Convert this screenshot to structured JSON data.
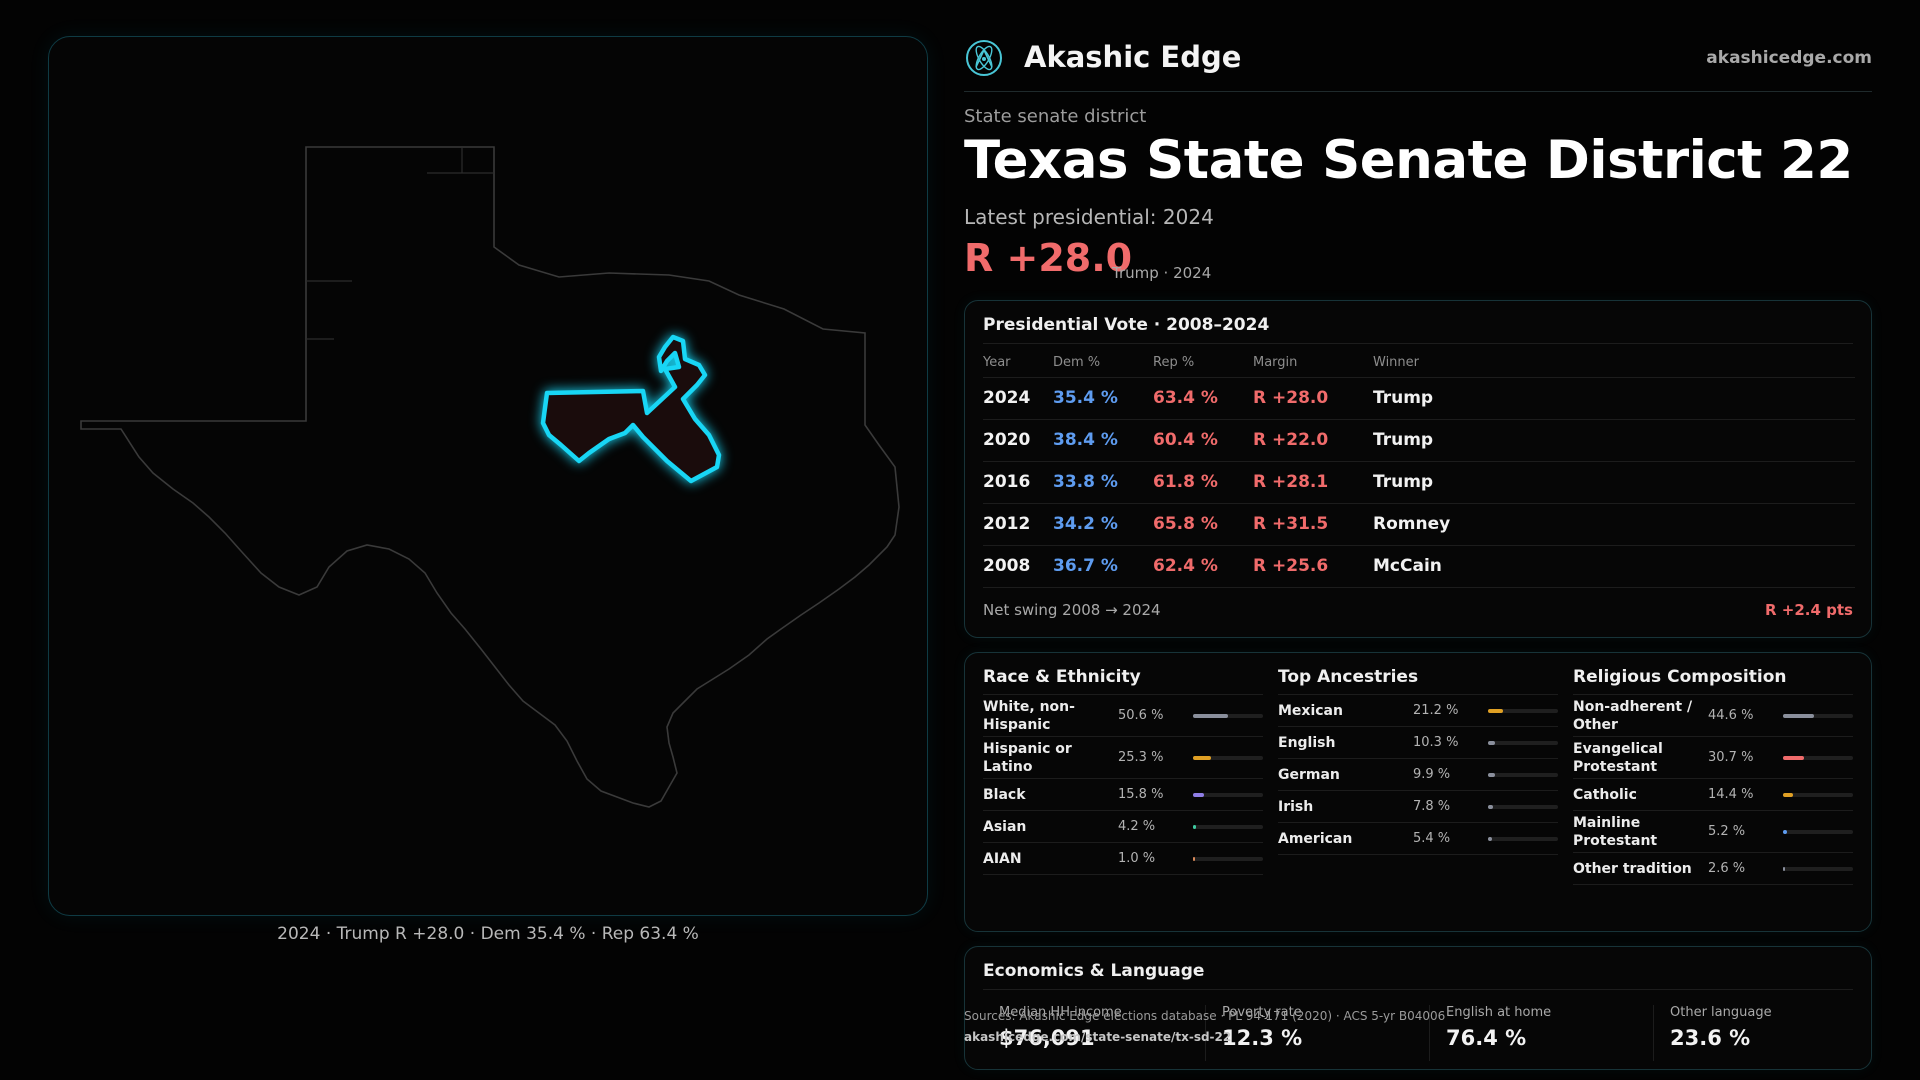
{
  "brand": {
    "name": "Akashic Edge",
    "url": "akashicedge.com",
    "logo_icon": "atom-logo-icon"
  },
  "header": {
    "kicker": "State senate district",
    "title_state": "Texas",
    "title_district": "State Senate District 22",
    "latest": "Latest presidential: 2024",
    "margin": "R +28.0",
    "margin_sub": "Trump · 2024"
  },
  "map": {
    "caption": "2024 · Trump R +28.0 · Dem 35.4 % · Rep 63.4 %",
    "state_outline_color": "#3a3a3a",
    "district_outline_color": "#18d6f5",
    "district_fill": "#1a0c0c"
  },
  "presidential": {
    "title": "Presidential Vote · 2008–2024",
    "headers": [
      "Year",
      "Dem %",
      "Rep %",
      "Margin",
      "Winner"
    ],
    "rows": [
      [
        "2024",
        "35.4 %",
        "63.4 %",
        "R +28.0",
        "Trump"
      ],
      [
        "2020",
        "38.4 %",
        "60.4 %",
        "R +22.0",
        "Trump"
      ],
      [
        "2016",
        "33.8 %",
        "61.8 %",
        "R +28.1",
        "Trump"
      ],
      [
        "2012",
        "34.2 %",
        "65.8 %",
        "R +31.5",
        "Romney"
      ],
      [
        "2008",
        "36.7 %",
        "62.4 %",
        "R +25.6",
        "McCain"
      ]
    ],
    "swing_label": "Net swing 2008 → 2024",
    "swing_value": "R +2.4 pts",
    "colors": {
      "dem": "#5e9cf0",
      "rep": "#f06b6b"
    }
  },
  "demographics": [
    {
      "title": "Race & Ethnicity",
      "items": [
        {
          "label": "White, non-Hispanic",
          "pct": "50.6 %",
          "value": 50.6,
          "color": "#8a8f9c"
        },
        {
          "label": "Hispanic or Latino",
          "pct": "25.3 %",
          "value": 25.3,
          "color": "#e0a024"
        },
        {
          "label": "Black",
          "pct": "15.8 %",
          "value": 15.8,
          "color": "#8f7ee6"
        },
        {
          "label": "Asian",
          "pct": "4.2 %",
          "value": 4.2,
          "color": "#3ec9a0"
        },
        {
          "label": "AIAN",
          "pct": "1.0 %",
          "value": 1.0,
          "color": "#d98a5a"
        }
      ]
    },
    {
      "title": "Top Ancestries",
      "items": [
        {
          "label": "Mexican",
          "pct": "21.2 %",
          "value": 21.2,
          "color": "#e0a024"
        },
        {
          "label": "English",
          "pct": "10.3 %",
          "value": 10.3,
          "color": "#8a8f9c"
        },
        {
          "label": "German",
          "pct": "9.9 %",
          "value": 9.9,
          "color": "#8a8f9c"
        },
        {
          "label": "Irish",
          "pct": "7.8 %",
          "value": 7.8,
          "color": "#8a8f9c"
        },
        {
          "label": "American",
          "pct": "5.4 %",
          "value": 5.4,
          "color": "#8a8f9c"
        }
      ]
    },
    {
      "title": "Religious Composition",
      "items": [
        {
          "label": "Non-adherent / Other",
          "pct": "44.6 %",
          "value": 44.6,
          "color": "#8a8f9c"
        },
        {
          "label": "Evangelical Protestant",
          "pct": "30.7 %",
          "value": 30.7,
          "color": "#f06b6b"
        },
        {
          "label": "Catholic",
          "pct": "14.4 %",
          "value": 14.4,
          "color": "#e0a024"
        },
        {
          "label": "Mainline Protestant",
          "pct": "5.2 %",
          "value": 5.2,
          "color": "#5e9cf0"
        },
        {
          "label": "Other tradition",
          "pct": "2.6 %",
          "value": 2.6,
          "color": "#8a8f9c"
        }
      ]
    }
  ],
  "economics": {
    "title": "Economics & Language",
    "stats": [
      {
        "label": "Median HH income",
        "value": "$76,091"
      },
      {
        "label": "Poverty rate",
        "value": "12.3 %"
      },
      {
        "label": "English at home",
        "value": "76.4 %"
      },
      {
        "label": "Other language",
        "value": "23.6 %"
      }
    ]
  },
  "sources": {
    "text": "Sources: Akashic Edge elections database · PL 94-171 (2020) · ACS 5-yr B04006",
    "url": "akashicedge.com/state-senate/tx-sd-22"
  }
}
